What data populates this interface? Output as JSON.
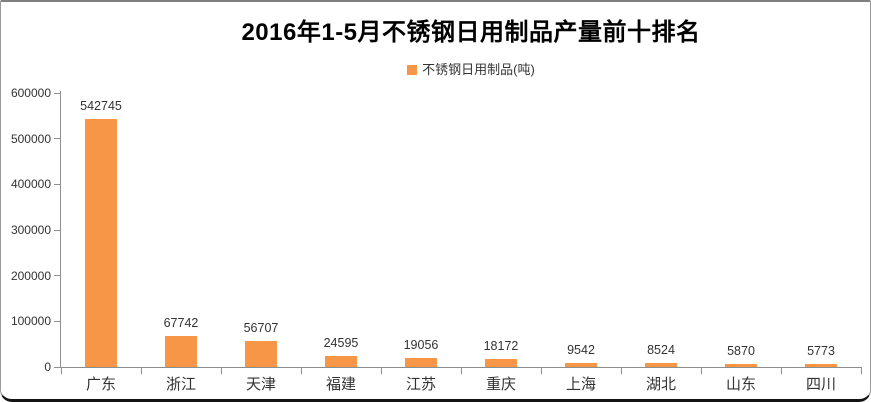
{
  "chart_data": {
    "type": "bar",
    "title": "2016年1-5月不锈钢日用制品产量前十排名",
    "legend": [
      "不锈钢日用制品(吨)"
    ],
    "legend_position": "top",
    "categories": [
      "广东",
      "浙江",
      "天津",
      "福建",
      "江苏",
      "重庆",
      "上海",
      "湖北",
      "山东",
      "四川"
    ],
    "values": [
      542745,
      67742,
      56707,
      24595,
      19056,
      18172,
      9542,
      8524,
      5870,
      5773
    ],
    "data_labels": [
      "542745",
      "67742",
      "56707",
      "24595",
      "19056",
      "18172",
      "9542",
      "8524",
      "5870",
      "5773"
    ],
    "xlabel": "",
    "ylabel": "",
    "ylim": [
      0,
      600000
    ],
    "y_ticks": [
      0,
      100000,
      200000,
      300000,
      400000,
      500000,
      600000
    ],
    "grid": false,
    "colors": {
      "bar": "#F79646",
      "axis": "#8E8E8E",
      "text": "#333333",
      "title": "#000000"
    }
  }
}
